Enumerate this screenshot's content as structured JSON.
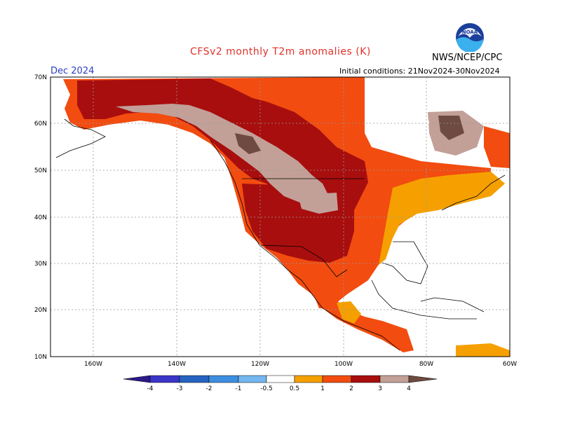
{
  "header": {
    "title": "CFSv2 monthly T2m anomalies (K)",
    "month": "Dec 2024",
    "initial_conditions": "Initial conditions: 21Nov2024-30Nov2024",
    "agency": "NWS/NCEP/CPC",
    "logo_text": "NOAA"
  },
  "axes": {
    "lat_labels": [
      "70N",
      "60N",
      "50N",
      "40N",
      "30N",
      "20N",
      "10N"
    ],
    "lon_labels": [
      "160W",
      "140W",
      "120W",
      "100W",
      "80W",
      "60W"
    ]
  },
  "colorbar": {
    "labels": [
      "-4",
      "-3",
      "-2",
      "-1",
      "-0.5",
      "0.5",
      "1",
      "2",
      "3",
      "4"
    ],
    "colors": {
      "lt-4": "#2a1a8a",
      "m4_m3": "#3a35c8",
      "m3_m2": "#2563c0",
      "m2_m1": "#3d8ee0",
      "m1_m05": "#74b7f0",
      "m05_05": "#ffffff",
      "p05_1": "#f5a000",
      "p1_2": "#f24c10",
      "p2_3": "#a80e0e",
      "p3_4": "#c2a098",
      "gt4": "#6e4a40"
    }
  },
  "colors": {
    "title": "#e0322a",
    "month": "#2a3fbf"
  }
}
